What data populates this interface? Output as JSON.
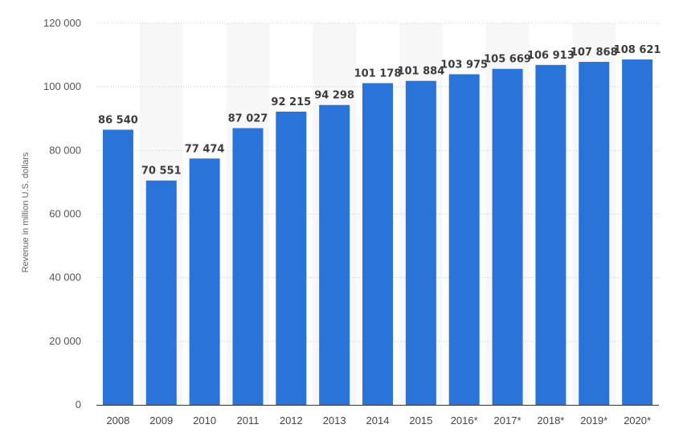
{
  "chart_data": {
    "type": "bar",
    "title": "",
    "xlabel": "",
    "ylabel": "Revenue in million U.S. dollars",
    "categories": [
      "2008",
      "2009",
      "2010",
      "2011",
      "2012",
      "2013",
      "2014",
      "2015",
      "2016*",
      "2017*",
      "2018*",
      "2019*",
      "2020*"
    ],
    "values": [
      86540,
      70551,
      77474,
      87027,
      92215,
      94298,
      101178,
      101884,
      103975,
      105669,
      106913,
      107868,
      108621
    ],
    "value_labels": [
      "86 540",
      "70 551",
      "77 474",
      "87 027",
      "92 215",
      "94 298",
      "101 178",
      "101 884",
      "103 975",
      "105 669",
      "106 913",
      "107 868",
      "108 621"
    ],
    "ylim": [
      0,
      120000
    ],
    "yticks": [
      0,
      20000,
      40000,
      60000,
      80000,
      100000,
      120000
    ],
    "ytick_labels": [
      "0",
      "20 000",
      "40 000",
      "60 000",
      "80 000",
      "100 000",
      "120 000"
    ],
    "grid": true,
    "legend": "none",
    "bar_color": "#2a74d9"
  }
}
